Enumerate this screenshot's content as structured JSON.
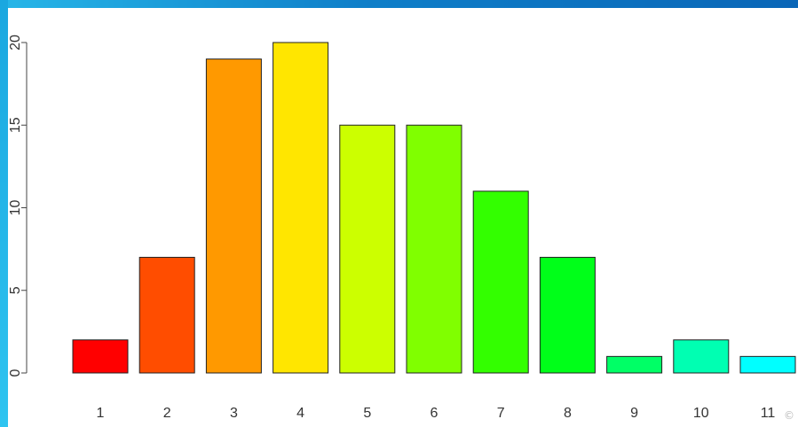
{
  "chart_data": {
    "type": "bar",
    "categories": [
      "1",
      "2",
      "3",
      "4",
      "5",
      "6",
      "7",
      "8",
      "9",
      "10",
      "11"
    ],
    "values": [
      2,
      7,
      19,
      20,
      15,
      15,
      11,
      7,
      1,
      2,
      1
    ],
    "colors": [
      "#ff0000",
      "#ff4d00",
      "#ff9900",
      "#ffe600",
      "#ccff00",
      "#80ff00",
      "#33ff00",
      "#00ff19",
      "#00ff66",
      "#00ffb2",
      "#00ffff"
    ],
    "y_ticks": [
      "0",
      "5",
      "10",
      "15",
      "20"
    ],
    "ylim": [
      0,
      20
    ],
    "grid": false,
    "legend": "none",
    "title": "",
    "xlabel": "",
    "ylabel": ""
  },
  "frame": {
    "accent_top": "#0f7fc9",
    "accent_left": "#2ec4f0"
  }
}
